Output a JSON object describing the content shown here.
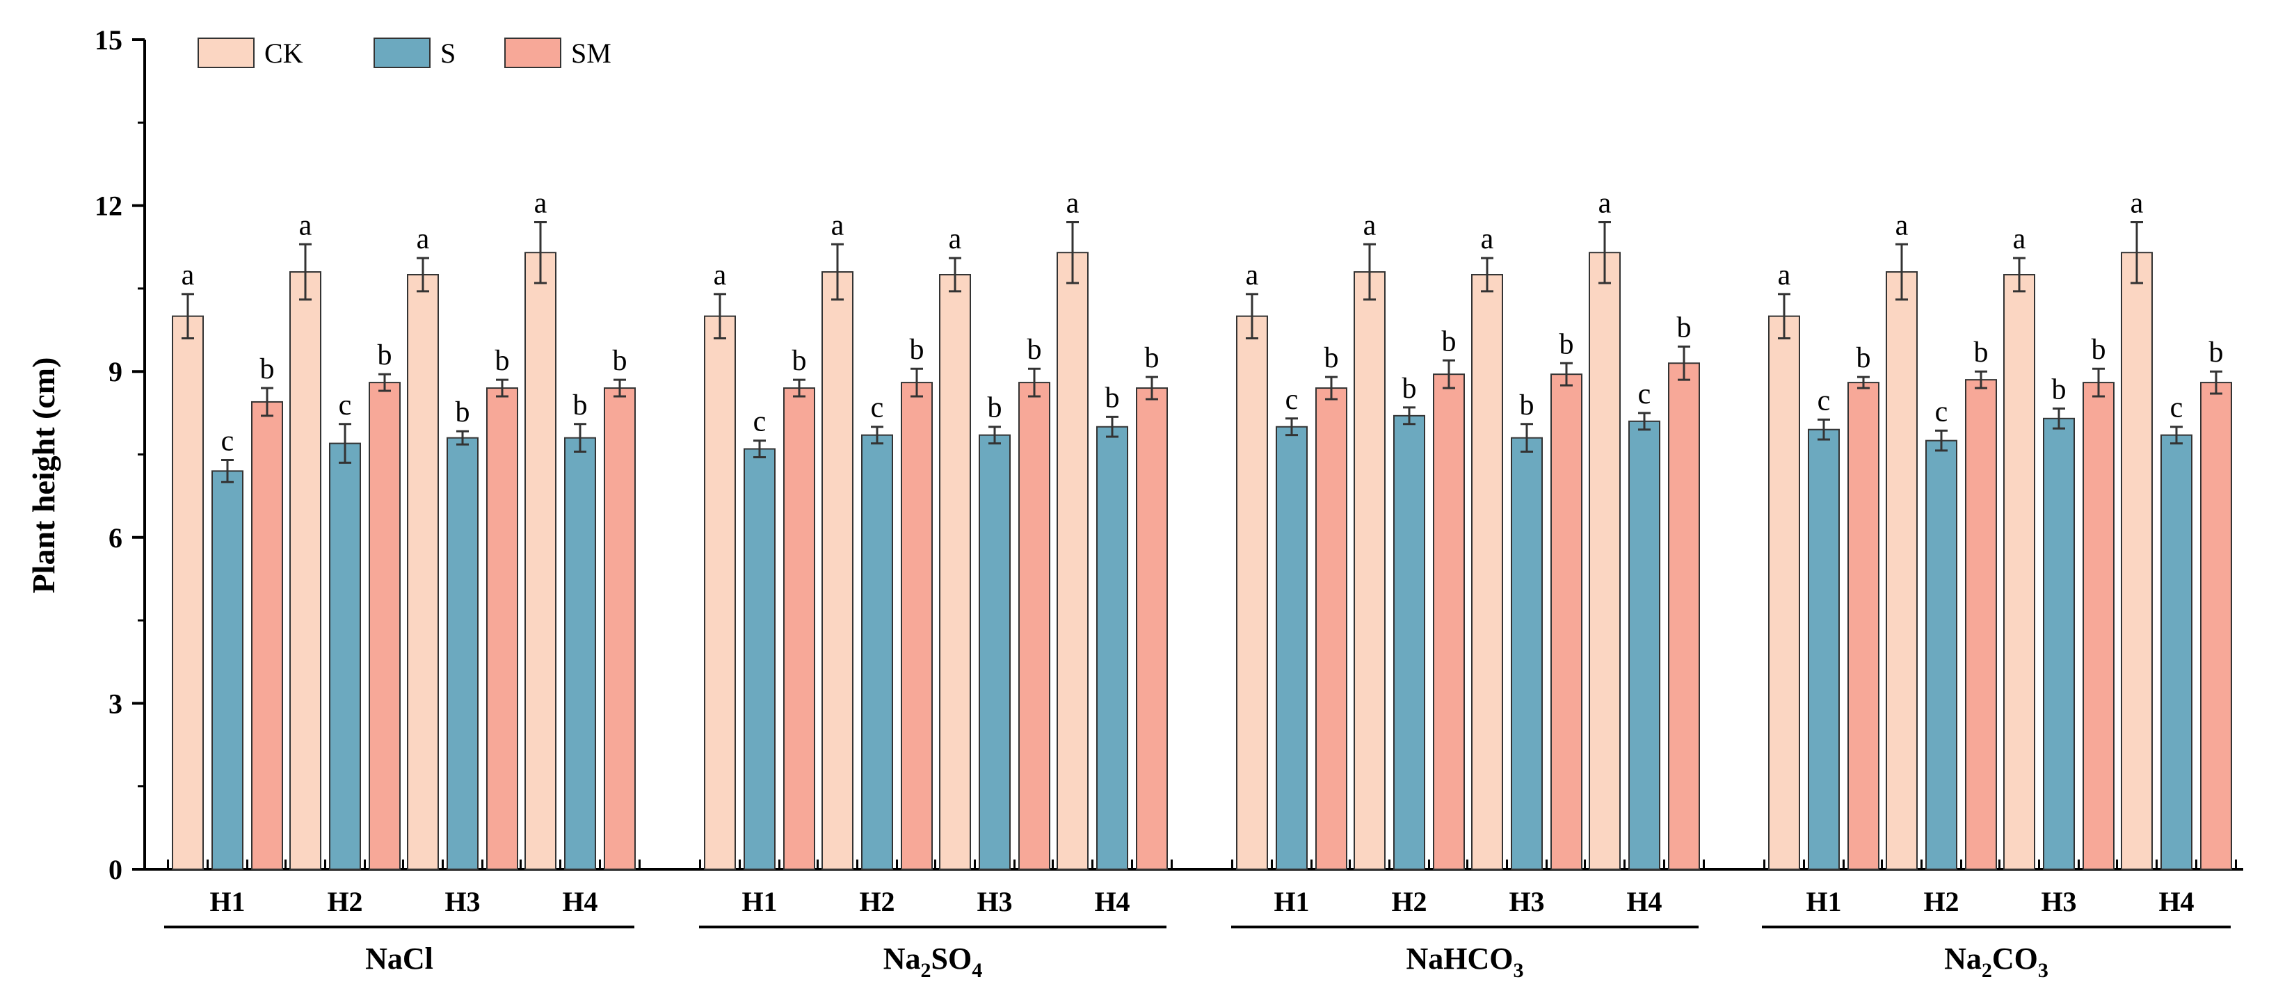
{
  "chart_data": {
    "type": "bar",
    "ylabel": "Plant height (cm)",
    "ylim": [
      0,
      15
    ],
    "yticks": [
      "0",
      "3",
      "6",
      "9",
      "12",
      "15"
    ],
    "grid": false,
    "legend_position": "top-left",
    "colors": {
      "CK": "#FBD6C2",
      "S": "#6CA9BF",
      "SM": "#F7A898"
    },
    "series_names": [
      "CK",
      "S",
      "SM"
    ],
    "subcategories": [
      "H1",
      "H2",
      "H3",
      "H4"
    ],
    "groups": [
      {
        "name": "NaCl",
        "name_main": "NaCl",
        "name_sub1": "",
        "name_mid": "",
        "name_sub2": "",
        "name_tail": "",
        "bars": [
          {
            "cat": "H1",
            "CK": 10.0,
            "CK_err": 0.4,
            "CK_sig": "a",
            "S": 7.2,
            "S_err": 0.2,
            "S_sig": "c",
            "SM": 8.45,
            "SM_err": 0.25,
            "SM_sig": "b"
          },
          {
            "cat": "H2",
            "CK": 10.8,
            "CK_err": 0.5,
            "CK_sig": "a",
            "S": 7.7,
            "S_err": 0.35,
            "S_sig": "c",
            "SM": 8.8,
            "SM_err": 0.15,
            "SM_sig": "b"
          },
          {
            "cat": "H3",
            "CK": 10.75,
            "CK_err": 0.3,
            "CK_sig": "a",
            "S": 7.8,
            "S_err": 0.12,
            "S_sig": "b",
            "SM": 8.7,
            "SM_err": 0.15,
            "SM_sig": "b"
          },
          {
            "cat": "H4",
            "CK": 11.15,
            "CK_err": 0.55,
            "CK_sig": "a",
            "S": 7.8,
            "S_err": 0.25,
            "S_sig": "b",
            "SM": 8.7,
            "SM_err": 0.15,
            "SM_sig": "b"
          }
        ]
      },
      {
        "name": "Na2SO4",
        "name_main": "Na",
        "name_sub1": "2",
        "name_mid": "SO",
        "name_sub2": "4",
        "name_tail": "",
        "bars": [
          {
            "cat": "H1",
            "CK": 10.0,
            "CK_err": 0.4,
            "CK_sig": "a",
            "S": 7.6,
            "S_err": 0.15,
            "S_sig": "c",
            "SM": 8.7,
            "SM_err": 0.15,
            "SM_sig": "b"
          },
          {
            "cat": "H2",
            "CK": 10.8,
            "CK_err": 0.5,
            "CK_sig": "a",
            "S": 7.85,
            "S_err": 0.15,
            "S_sig": "c",
            "SM": 8.8,
            "SM_err": 0.25,
            "SM_sig": "b"
          },
          {
            "cat": "H3",
            "CK": 10.75,
            "CK_err": 0.3,
            "CK_sig": "a",
            "S": 7.85,
            "S_err": 0.15,
            "S_sig": "b",
            "SM": 8.8,
            "SM_err": 0.25,
            "SM_sig": "b"
          },
          {
            "cat": "H4",
            "CK": 11.15,
            "CK_err": 0.55,
            "CK_sig": "a",
            "S": 8.0,
            "S_err": 0.18,
            "S_sig": "b",
            "SM": 8.7,
            "SM_err": 0.2,
            "SM_sig": "b"
          }
        ]
      },
      {
        "name": "NaHCO3",
        "name_main": "NaHCO",
        "name_sub1": "3",
        "name_mid": "",
        "name_sub2": "",
        "name_tail": "",
        "bars": [
          {
            "cat": "H1",
            "CK": 10.0,
            "CK_err": 0.4,
            "CK_sig": "a",
            "S": 8.0,
            "S_err": 0.15,
            "S_sig": "c",
            "SM": 8.7,
            "SM_err": 0.2,
            "SM_sig": "b"
          },
          {
            "cat": "H2",
            "CK": 10.8,
            "CK_err": 0.5,
            "CK_sig": "a",
            "S": 8.2,
            "S_err": 0.15,
            "S_sig": "b",
            "SM": 8.95,
            "SM_err": 0.25,
            "SM_sig": "b"
          },
          {
            "cat": "H3",
            "CK": 10.75,
            "CK_err": 0.3,
            "CK_sig": "a",
            "S": 7.8,
            "S_err": 0.25,
            "S_sig": "b",
            "SM": 8.95,
            "SM_err": 0.2,
            "SM_sig": "b"
          },
          {
            "cat": "H4",
            "CK": 11.15,
            "CK_err": 0.55,
            "CK_sig": "a",
            "S": 8.1,
            "S_err": 0.15,
            "S_sig": "c",
            "SM": 9.15,
            "SM_err": 0.3,
            "SM_sig": "b"
          }
        ]
      },
      {
        "name": "Na2CO3",
        "name_main": "Na",
        "name_sub1": "2",
        "name_mid": "CO",
        "name_sub2": "3",
        "name_tail": "",
        "bars": [
          {
            "cat": "H1",
            "CK": 10.0,
            "CK_err": 0.4,
            "CK_sig": "a",
            "S": 7.95,
            "S_err": 0.18,
            "S_sig": "c",
            "SM": 8.8,
            "SM_err": 0.1,
            "SM_sig": "b"
          },
          {
            "cat": "H2",
            "CK": 10.8,
            "CK_err": 0.5,
            "CK_sig": "a",
            "S": 7.75,
            "S_err": 0.18,
            "S_sig": "c",
            "SM": 8.85,
            "SM_err": 0.15,
            "SM_sig": "b"
          },
          {
            "cat": "H3",
            "CK": 10.75,
            "CK_err": 0.3,
            "CK_sig": "a",
            "S": 8.15,
            "S_err": 0.18,
            "S_sig": "b",
            "SM": 8.8,
            "SM_err": 0.25,
            "SM_sig": "b"
          },
          {
            "cat": "H4",
            "CK": 11.15,
            "CK_err": 0.55,
            "CK_sig": "a",
            "S": 7.85,
            "S_err": 0.15,
            "S_sig": "c",
            "SM": 8.8,
            "SM_err": 0.2,
            "SM_sig": "b"
          }
        ]
      }
    ]
  }
}
